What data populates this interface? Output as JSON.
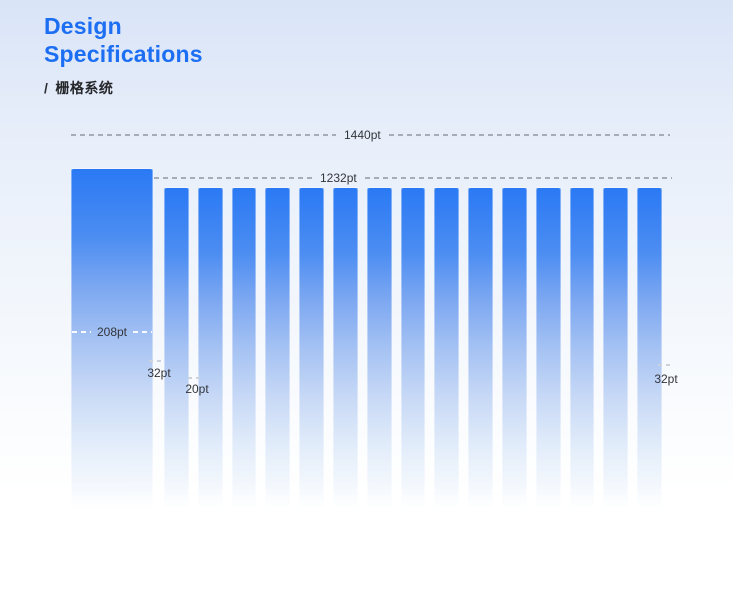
{
  "header": {
    "title": "Design Specifications",
    "slash": "/",
    "subtitle": "栅格系统"
  },
  "rulers": {
    "total_width": "1440pt",
    "content_width": "1232pt"
  },
  "measurements": {
    "sidebar_width": "208pt",
    "left_margin": "32pt",
    "gutter": "20pt",
    "right_margin": "32pt"
  },
  "grid": {
    "column_count": 15
  },
  "colors": {
    "accent_blue": "#1c6ef3",
    "bar_blue_top": "#2a79f4",
    "label_text": "#33353a",
    "dash_gray": "#a6adb9"
  }
}
